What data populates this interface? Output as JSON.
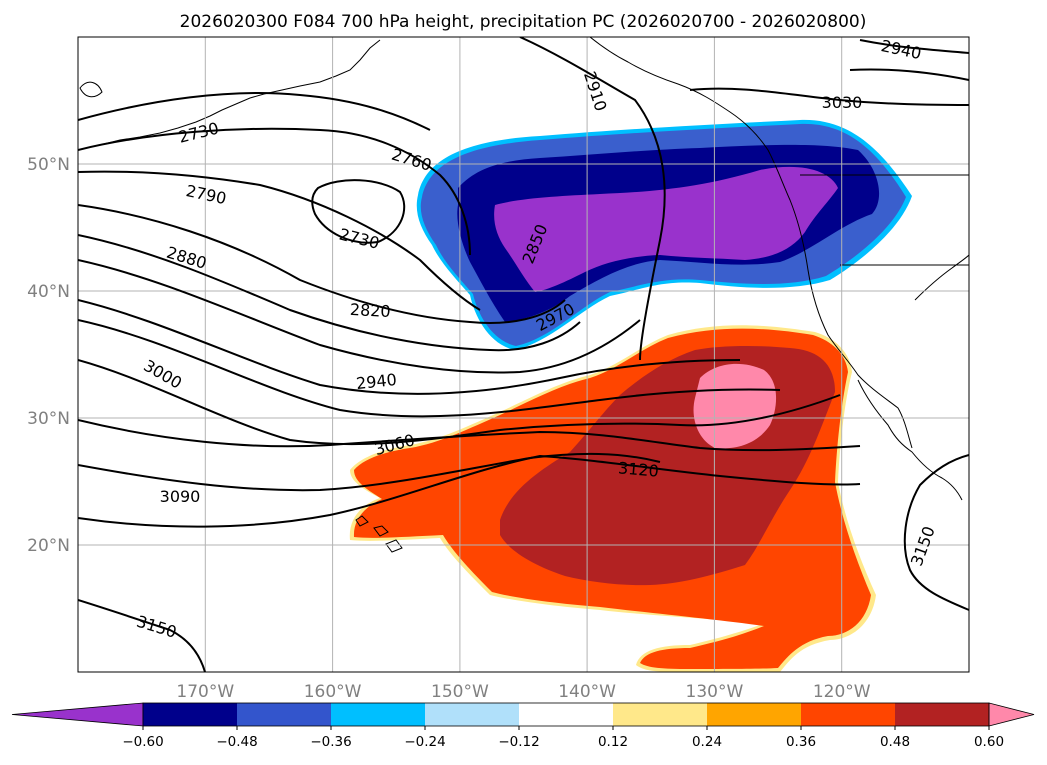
{
  "title": "2026020300 F084 700 hPa height, precipitation PC (2026020700 - 2026020800)",
  "map": {
    "projection": "PlateCarree",
    "lon_range": [
      -180,
      -110
    ],
    "lat_range": [
      10,
      60
    ],
    "lat_labels": [
      "50°N",
      "40°N",
      "30°N",
      "20°N"
    ],
    "lon_labels": [
      "170°W",
      "160°W",
      "150°W",
      "140°W",
      "130°W",
      "120°W"
    ],
    "height_contour_labels": [
      "2940",
      "2910",
      "3030",
      "2730",
      "2760",
      "2790",
      "2730",
      "2850",
      "2880",
      "2820",
      "2970",
      "3000",
      "2940",
      "3060",
      "3120",
      "3090",
      "3150",
      "3150"
    ]
  },
  "colorbar": {
    "ticks": [
      "−0.60",
      "−0.48",
      "−0.36",
      "−0.24",
      "−0.12",
      "0.12",
      "0.24",
      "0.36",
      "0.48",
      "0.60"
    ],
    "colors": [
      "#9932cc",
      "#00008b",
      "#3355cc",
      "#00bfff",
      "#b0e0fa",
      "#ffffff",
      "#ffe88a",
      "#ffa500",
      "#ff4500",
      "#b22222",
      "#ff88aa"
    ]
  },
  "colors": {
    "neg_strong": "#9932cc",
    "neg_dark": "#00008b",
    "neg_mid": "#3a5fcd",
    "neg_light": "#00bfff",
    "pos_light": "#ffe88a",
    "pos_orange": "#ff4500",
    "pos_red": "#b22222",
    "pos_pink": "#ff88aa"
  }
}
